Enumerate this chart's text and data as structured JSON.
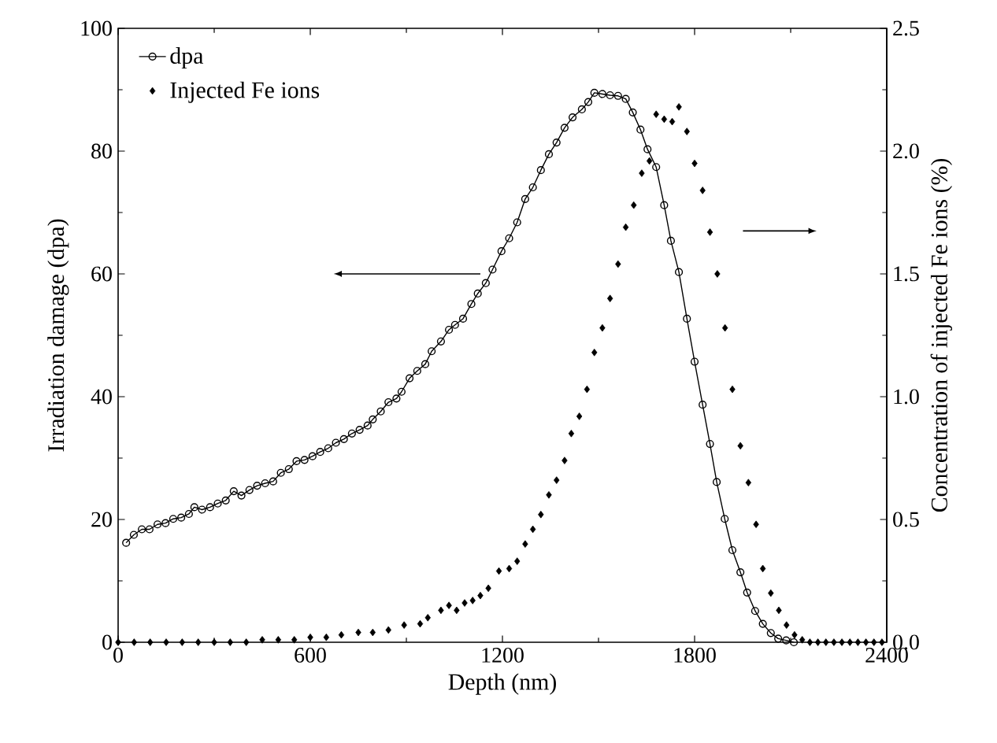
{
  "chart_data": {
    "type": "line",
    "xlabel": "Depth (nm)",
    "ylabel": "Irradiation damage (dpa)",
    "y2label": "Concentration of injected Fe ions (%)",
    "xlim": [
      0,
      2400
    ],
    "xticks": [
      0,
      600,
      1200,
      1800,
      2400
    ],
    "ylim": [
      0,
      100
    ],
    "yticks": [
      0,
      20,
      40,
      60,
      80,
      100
    ],
    "y2lim": [
      0,
      2.5
    ],
    "y2ticks": [
      {
        "value": 0,
        "label": "0.0"
      },
      {
        "value": 0.5,
        "label": "0.5"
      },
      {
        "value": 1,
        "label": "1.0"
      },
      {
        "value": 1.5,
        "label": "1.5"
      },
      {
        "value": 2,
        "label": "2.0"
      },
      {
        "value": 2.5,
        "label": "2.5"
      }
    ],
    "legend": "top left",
    "grid": false,
    "series": [
      {
        "name": "dpa",
        "type": "line",
        "marker": "circle",
        "line_style": "solid",
        "color": "#000000",
        "x": [
          25,
          49,
          74,
          98,
          123,
          148,
          172,
          197,
          221,
          238,
          262,
          287,
          311,
          336,
          361,
          385,
          410,
          434,
          459,
          484,
          508,
          533,
          557,
          582,
          607,
          631,
          656,
          680,
          705,
          730,
          754,
          779,
          795,
          820,
          844,
          869,
          885,
          910,
          934,
          959,
          979,
          1008,
          1033,
          1052,
          1077,
          1103,
          1123,
          1148,
          1169,
          1197,
          1221,
          1246,
          1271,
          1295,
          1320,
          1345,
          1369,
          1394,
          1419,
          1448,
          1468,
          1487,
          1512,
          1536,
          1561,
          1585,
          1607,
          1631,
          1653,
          1680,
          1705,
          1726,
          1751,
          1776,
          1800,
          1825,
          1848,
          1869,
          1894,
          1918,
          1943,
          1964,
          1989,
          2013,
          2038,
          2061,
          2086,
          2110
        ],
        "values": [
          16.2,
          17.5,
          18.4,
          18.4,
          19.2,
          19.4,
          20.1,
          20.3,
          20.9,
          22.0,
          21.6,
          22.0,
          22.6,
          23.1,
          24.6,
          23.9,
          24.8,
          25.5,
          25.9,
          26.2,
          27.6,
          28.2,
          29.5,
          29.7,
          30.3,
          31.0,
          31.6,
          32.5,
          33.1,
          34.0,
          34.6,
          35.3,
          36.3,
          37.6,
          39.1,
          39.7,
          40.8,
          43.0,
          44.2,
          45.3,
          47.4,
          49.0,
          50.9,
          51.7,
          52.7,
          55.1,
          56.8,
          58.5,
          60.7,
          63.7,
          65.8,
          68.4,
          72.2,
          74.1,
          76.9,
          79.5,
          81.4,
          83.8,
          85.5,
          86.8,
          88.0,
          89.5,
          89.3,
          89.1,
          89.0,
          88.5,
          86.3,
          83.5,
          80.3,
          77.4,
          71.2,
          65.4,
          60.3,
          52.7,
          45.7,
          38.7,
          32.3,
          26.1,
          20.1,
          15.0,
          11.4,
          8.1,
          5.1,
          3.0,
          1.5,
          0.6,
          0.3,
          0.0
        ]
      },
      {
        "name": "Injected Fe ions",
        "type": "scatter",
        "marker": "diamond",
        "axis": "y2",
        "color": "#000000",
        "x": [
          0,
          50,
          100,
          150,
          200,
          250,
          300,
          350,
          400,
          450,
          500,
          550,
          600,
          650,
          697,
          750,
          795,
          844,
          893,
          943,
          967,
          1008,
          1033,
          1057,
          1082,
          1107,
          1131,
          1156,
          1189,
          1221,
          1246,
          1271,
          1295,
          1320,
          1345,
          1369,
          1394,
          1415,
          1440,
          1464,
          1487,
          1512,
          1536,
          1561,
          1585,
          1610,
          1635,
          1659,
          1680,
          1705,
          1730,
          1751,
          1776,
          1800,
          1825,
          1848,
          1871,
          1895,
          1918,
          1943,
          1968,
          1992,
          2013,
          2038,
          2063,
          2087,
          2112,
          2136,
          2160,
          2185,
          2210,
          2235,
          2260,
          2285,
          2310,
          2335,
          2360,
          2385
        ],
        "values": [
          0.0,
          0.0,
          0.0,
          0.0,
          0.0,
          0.0,
          0.0,
          0.0,
          0.0,
          0.01,
          0.01,
          0.01,
          0.02,
          0.02,
          0.03,
          0.04,
          0.04,
          0.05,
          0.07,
          0.075,
          0.1,
          0.13,
          0.15,
          0.13,
          0.16,
          0.17,
          0.19,
          0.22,
          0.29,
          0.3,
          0.33,
          0.4,
          0.46,
          0.52,
          0.6,
          0.66,
          0.74,
          0.85,
          0.92,
          1.03,
          1.18,
          1.28,
          1.4,
          1.54,
          1.69,
          1.78,
          1.91,
          1.96,
          2.15,
          2.13,
          2.12,
          2.18,
          2.08,
          1.95,
          1.84,
          1.67,
          1.5,
          1.28,
          1.03,
          0.8,
          0.65,
          0.48,
          0.3,
          0.2,
          0.13,
          0.07,
          0.03,
          0.01,
          0.0,
          0.0,
          0.0,
          0.0,
          0.0,
          0.0,
          0.0,
          0.0,
          0.0,
          0.0
        ]
      }
    ]
  }
}
